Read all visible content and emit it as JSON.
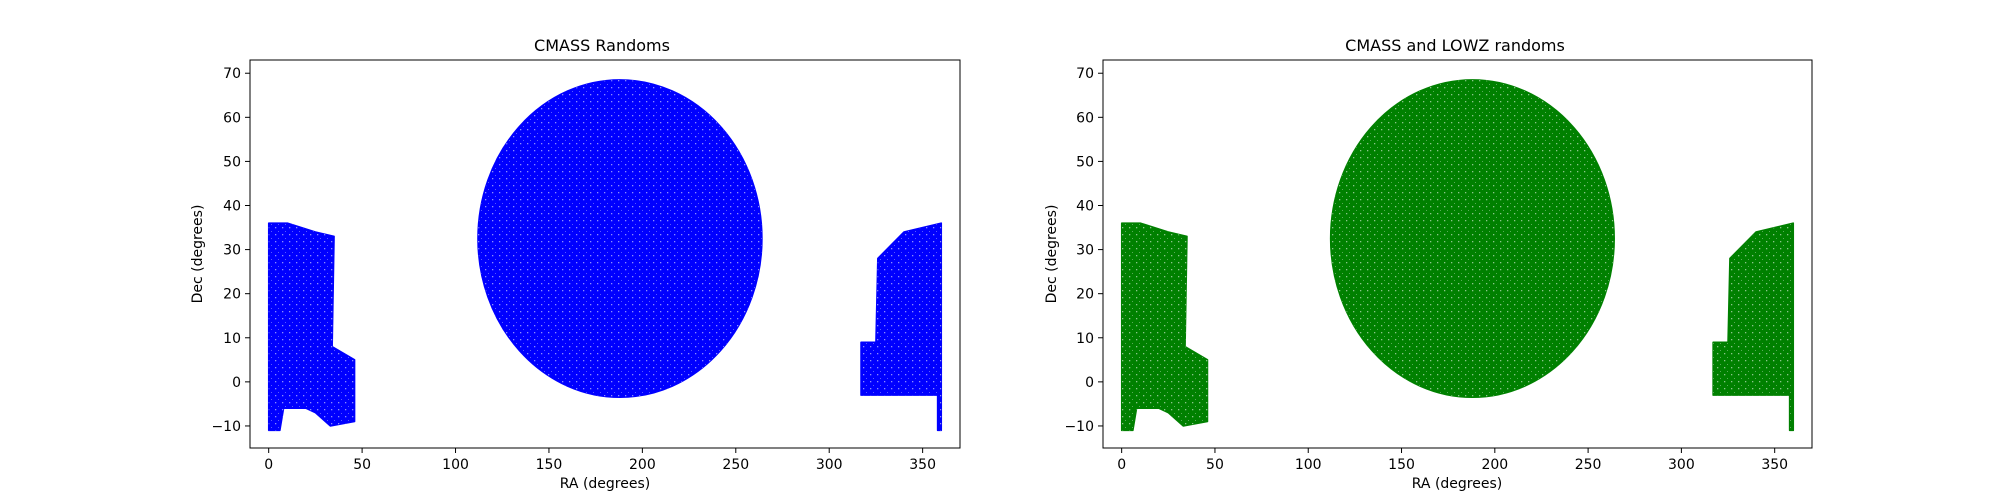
{
  "chart_data": [
    {
      "type": "scatter",
      "title": "CMASS Randoms",
      "xlabel": "RA (degrees)",
      "ylabel": "Dec (degrees)",
      "xlim": [
        -10,
        370
      ],
      "ylim": [
        -15,
        73
      ],
      "xticks": [
        "0",
        "50",
        "100",
        "150",
        "200",
        "250",
        "300",
        "350"
      ],
      "yticks": [
        "−10",
        "0",
        "10",
        "20",
        "30",
        "40",
        "50",
        "60",
        "70"
      ],
      "color": "#0000ff",
      "grid": false,
      "series": [
        {
          "regions": [
            {
              "shape": "polygon",
              "ra_dec": [
                [
                  0,
                  -11
                ],
                [
                  0,
                  36
                ],
                [
                  10,
                  36
                ],
                [
                  25,
                  34
                ],
                [
                  35,
                  33
                ],
                [
                  34,
                  8
                ],
                [
                  46,
                  5
                ],
                [
                  46,
                  -9
                ],
                [
                  33,
                  -10
                ],
                [
                  25,
                  -7
                ],
                [
                  20,
                  -6
                ],
                [
                  8,
                  -6
                ],
                [
                  6,
                  -11
                ]
              ]
            },
            {
              "shape": "ellipse",
              "ra_center": 188,
              "dec_center": 32.5,
              "ra_halfwidth": 76,
              "dec_halfwidth": 36
            },
            {
              "shape": "polygon",
              "ra_dec": [
                [
                  317,
                  -3
                ],
                [
                  317,
                  9
                ],
                [
                  325,
                  9
                ],
                [
                  326,
                  28
                ],
                [
                  340,
                  34
                ],
                [
                  360,
                  36
                ],
                [
                  360,
                  -11
                ],
                [
                  358,
                  -11
                ],
                [
                  358,
                  -3
                ]
              ]
            }
          ]
        }
      ]
    },
    {
      "type": "scatter",
      "title": "CMASS and LOWZ randoms",
      "xlabel": "RA (degrees)",
      "ylabel": "Dec (degrees)",
      "xlim": [
        -10,
        370
      ],
      "ylim": [
        -15,
        73
      ],
      "xticks": [
        "0",
        "50",
        "100",
        "150",
        "200",
        "250",
        "300",
        "350"
      ],
      "yticks": [
        "−10",
        "0",
        "10",
        "20",
        "30",
        "40",
        "50",
        "60",
        "70"
      ],
      "color": "#008000",
      "grid": false,
      "series": [
        {
          "regions": [
            {
              "shape": "polygon",
              "ra_dec": [
                [
                  0,
                  -11
                ],
                [
                  0,
                  36
                ],
                [
                  10,
                  36
                ],
                [
                  25,
                  34
                ],
                [
                  35,
                  33
                ],
                [
                  34,
                  8
                ],
                [
                  46,
                  5
                ],
                [
                  46,
                  -9
                ],
                [
                  33,
                  -10
                ],
                [
                  25,
                  -7
                ],
                [
                  20,
                  -6
                ],
                [
                  8,
                  -6
                ],
                [
                  6,
                  -11
                ]
              ]
            },
            {
              "shape": "ellipse",
              "ra_center": 188,
              "dec_center": 32.5,
              "ra_halfwidth": 76,
              "dec_halfwidth": 36
            },
            {
              "shape": "polygon",
              "ra_dec": [
                [
                  317,
                  -3
                ],
                [
                  317,
                  9
                ],
                [
                  325,
                  9
                ],
                [
                  326,
                  28
                ],
                [
                  340,
                  34
                ],
                [
                  360,
                  36
                ],
                [
                  360,
                  -11
                ],
                [
                  358,
                  -11
                ],
                [
                  358,
                  -3
                ]
              ]
            }
          ]
        }
      ]
    }
  ]
}
